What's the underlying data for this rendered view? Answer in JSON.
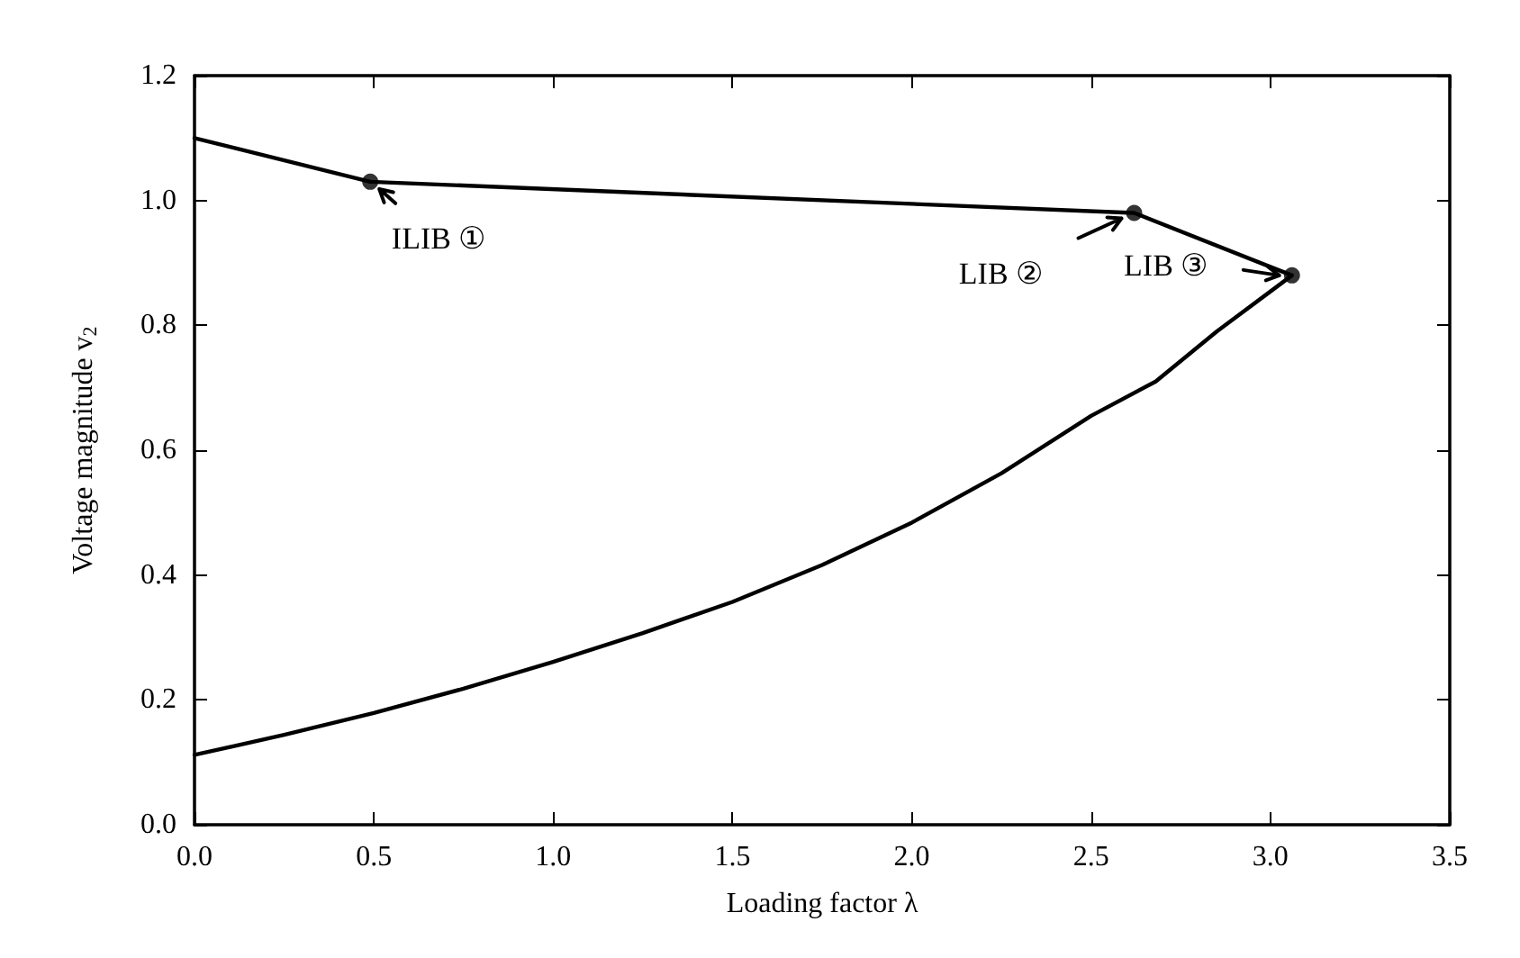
{
  "chart_data": {
    "type": "line",
    "xlabel": "Loading factor λ",
    "ylabel": "Voltage magnitude v$_{2}$",
    "series": [
      {
        "color": "#000000",
        "marker": "none",
        "x": [
          0,
          0.49,
          2.62,
          3.06,
          2.85,
          2.68,
          2.5,
          2.25,
          2.0,
          1.75,
          1.5,
          1.25,
          1.0,
          0.75,
          0.5,
          0.25,
          0
        ],
        "values": [
          1.1,
          1.03,
          0.98,
          0.88,
          0.79,
          0.71,
          0.655,
          0.563,
          0.484,
          0.416,
          0.357,
          0.307,
          0.261,
          0.218,
          0.179,
          0.144,
          0.112
        ]
      },
      {
        "type": "scatter",
        "color": "#000000",
        "marker": "circle",
        "x": [
          0.49,
          2.62,
          3.06
        ],
        "values": [
          1.03,
          0.98,
          0.88
        ]
      }
    ],
    "annotations": [
      {
        "text": "ILIB ①",
        "x": 0.49,
        "y": 1.03
      },
      {
        "text": "LIB ②",
        "x": 2.62,
        "y": 0.98
      },
      {
        "text": "LIB ③",
        "x": 3.06,
        "y": 0.88
      }
    ],
    "xlim": [
      0,
      3.5
    ],
    "xticks": [
      {
        "value": 0,
        "label": "0.0"
      },
      0.5,
      {
        "value": 1,
        "label": "1.0"
      },
      1.5,
      {
        "value": 2,
        "label": "2.0"
      },
      2.5,
      {
        "value": 3,
        "label": "3.0"
      },
      3.5
    ],
    "ylim": [
      0,
      1.2
    ],
    "yticks": [
      {
        "value": 0,
        "label": "0.0"
      },
      0.2,
      0.4,
      0.6,
      0.8,
      {
        "value": 1,
        "label": "1.0"
      },
      1.2
    ],
    "grid": false
  }
}
